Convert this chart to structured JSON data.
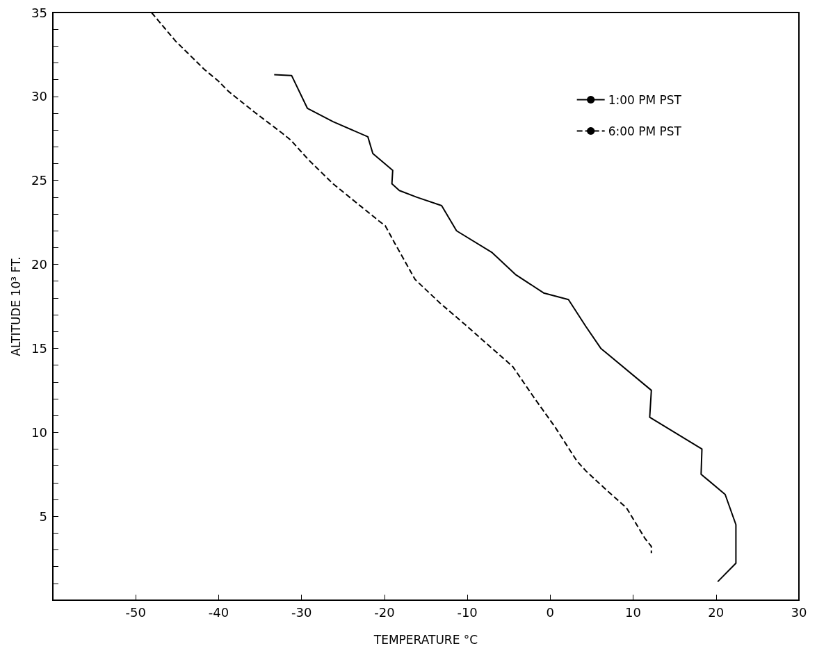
{
  "chart_data": {
    "type": "line",
    "xlabel": "TEMPERATURE °C",
    "ylabel": "ALTITUDE 10³ FT.",
    "xlim": [
      -60,
      30
    ],
    "xticks": [
      -50,
      -40,
      -30,
      -20,
      -10,
      0,
      10,
      20,
      30
    ],
    "ylim": [
      0,
      35
    ],
    "yticks": [
      {
        "value": 1,
        "label": null
      },
      {
        "value": 2,
        "label": null
      },
      {
        "value": 3,
        "label": null
      },
      {
        "value": 4,
        "label": null
      },
      5,
      {
        "value": 6,
        "label": null
      },
      {
        "value": 7,
        "label": null
      },
      {
        "value": 8,
        "label": null
      },
      {
        "value": 9,
        "label": null
      },
      10,
      {
        "value": 11,
        "label": null
      },
      {
        "value": 12,
        "label": null
      },
      {
        "value": 13,
        "label": null
      },
      {
        "value": 14,
        "label": null
      },
      15,
      {
        "value": 16,
        "label": null
      },
      {
        "value": 17,
        "label": null
      },
      {
        "value": 18,
        "label": null
      },
      {
        "value": 19,
        "label": null
      },
      20,
      {
        "value": 21,
        "label": null
      },
      {
        "value": 22,
        "label": null
      },
      {
        "value": 23,
        "label": null
      },
      {
        "value": 24,
        "label": null
      },
      25,
      {
        "value": 26,
        "label": null
      },
      {
        "value": 27,
        "label": null
      },
      {
        "value": 28,
        "label": null
      },
      {
        "value": 29,
        "label": null
      },
      30,
      {
        "value": 31,
        "label": null
      },
      {
        "value": 32,
        "label": null
      },
      {
        "value": 33,
        "label": null
      },
      {
        "value": 34,
        "label": null
      },
      35
    ],
    "legend": "top right",
    "marker": "none",
    "series": [
      {
        "name": "1:00 PM PST",
        "color": "#000000",
        "line_style": "solid",
        "x": [
          -33.3,
          -31.2,
          -29.3,
          -26.2,
          -22.0,
          -21.4,
          -19.0,
          -19.1,
          -18.2,
          -16.1,
          -13.1,
          -11.3,
          -7.0,
          -4.2,
          -0.8,
          2.2,
          4.3,
          6.1,
          12.2,
          12.0,
          18.3,
          18.2,
          21.1,
          22.4,
          22.4,
          20.2
        ],
        "values": [
          31.3,
          31.25,
          29.3,
          28.5,
          27.6,
          26.6,
          25.6,
          24.8,
          24.4,
          24.0,
          23.5,
          22.0,
          20.7,
          19.4,
          18.3,
          17.9,
          16.3,
          15.0,
          12.5,
          10.9,
          9.0,
          7.5,
          6.3,
          4.5,
          2.2,
          1.1
        ]
      },
      {
        "name": "6:00 PM PST",
        "color": "#000000",
        "line_style": "dashed",
        "x": [
          -48.1,
          -45.2,
          -41.7,
          -40.0,
          -38.8,
          -35.5,
          -32.3,
          -31.3,
          -29.1,
          -26.2,
          -22.7,
          -20.7,
          -19.9,
          -18.8,
          -16.3,
          -13.3,
          -10.0,
          -6.8,
          -5.4,
          -4.5,
          -2.0,
          0.6,
          3.2,
          4.3,
          6.7,
          9.2,
          10.3,
          11.4,
          12.2,
          12.2
        ],
        "values": [
          35,
          33.3,
          31.6,
          30.9,
          30.3,
          29.0,
          27.8,
          27.4,
          26.2,
          24.8,
          23.4,
          22.6,
          22.3,
          21.3,
          19.1,
          17.7,
          16.3,
          14.9,
          14.3,
          13.9,
          12.1,
          10.3,
          8.3,
          7.7,
          6.6,
          5.5,
          4.6,
          3.7,
          3.2,
          2.8
        ]
      }
    ]
  }
}
